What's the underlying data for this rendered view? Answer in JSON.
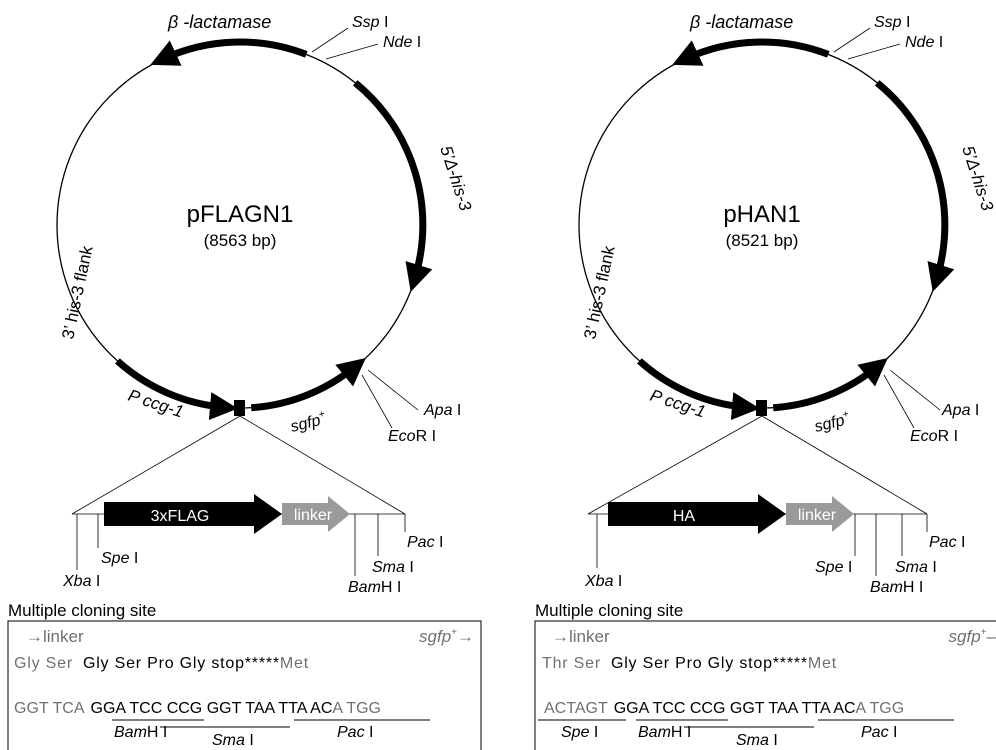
{
  "plasmids": [
    {
      "name": "pFLAGN1",
      "size": "(8563 bp)",
      "blactamase": "β -lactamase",
      "ssp": "Ssp",
      "ssp_suffix": " I",
      "nde": "Nde",
      "nde_suffix": " I",
      "his3_5": "5’Δ-his-3",
      "his3_3": "3’ his-3 flank",
      "pccg": "P ccg-1",
      "sgfp": "sgfp",
      "sgfp_sup": "+",
      "apa": "Apa",
      "apa_suffix": " I",
      "ecori": "Eco",
      "ecori_suffix": "R I",
      "tag_label": "3xFLAG",
      "linker_label": "linker",
      "xba": "Xba",
      "xba_suffix": " I",
      "spe": "Spe",
      "spe_suffix": " I",
      "bamhi": "Bam",
      "bamhi_suffix": "H I",
      "sma": "Sma",
      "sma_suffix": " I",
      "pac": "Pac",
      "pac_suffix": " I",
      "mcs_title": "Multiple cloning site",
      "mcs_linker": "→linker",
      "mcs_sgfp": "sgfp",
      "mcs_sgfp_tail": "→",
      "aa_grey": "Gly Ser",
      "aa_black": "Gly Ser Pro Gly stop",
      "aa_stars": "*****",
      "aa_met": "Met",
      "dna_grey": "GGT TCA",
      "dna_black": "GGA TCC CCG GGT TAA TTA AC",
      "dna_tail": "A TGG",
      "dna_bamhi": "Bam",
      "dna_bamhi_suffix": "H I",
      "dna_sma": "Sma",
      "dna_sma_suffix": " I",
      "dna_pac": "Pac",
      "dna_pac_suffix": " I"
    },
    {
      "name": "pHAN1",
      "size": "(8521 bp)",
      "blactamase": "β -lactamase",
      "ssp": "Ssp",
      "ssp_suffix": " I",
      "nde": "Nde",
      "nde_suffix": " I",
      "his3_5": "5’Δ-his-3",
      "his3_3": "3’ his-3 flank",
      "pccg": "P ccg-1",
      "sgfp": "sgfp",
      "sgfp_sup": "+",
      "apa": "Apa",
      "apa_suffix": " I",
      "ecori": "Eco",
      "ecori_suffix": "R I",
      "tag_label": "HA",
      "linker_label": "linker",
      "xba": "Xba",
      "xba_suffix": " I",
      "spe": "Spe",
      "spe_suffix": " I",
      "bamhi": "Bam",
      "bamhi_suffix": "H I",
      "sma": "Sma",
      "sma_suffix": " I",
      "pac": "Pac",
      "pac_suffix": " I",
      "mcs_title": "Multiple cloning site",
      "mcs_linker": "→linker",
      "mcs_sgfp": "sgfp",
      "mcs_sgfp_tail": "–",
      "aa_grey": "Thr Ser",
      "aa_black": "Gly Ser Pro Gly stop",
      "aa_stars": "*****",
      "aa_met": "Met",
      "dna_grey": "ACTAGT",
      "dna_black": "GGA TCC CCG GGT TAA TTA AC",
      "dna_tail": "A TGG",
      "dna_spe": "Spe",
      "dna_spe_suffix": " I",
      "dna_bamhi": "Bam",
      "dna_bamhi_suffix": "H I",
      "dna_sma": "Sma",
      "dna_sma_suffix": " I",
      "dna_pac": "Pac",
      "dna_pac_suffix": " I"
    }
  ],
  "colors": {
    "grey_text": "#707070",
    "linker_arrow": "#9a9a9a",
    "black": "#000000"
  }
}
